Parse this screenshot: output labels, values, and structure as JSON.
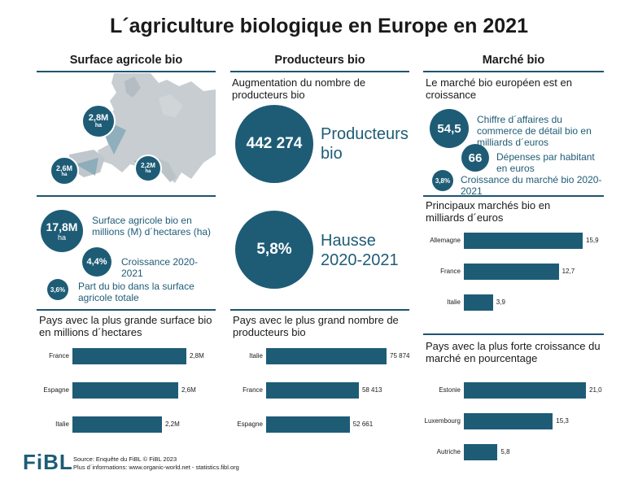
{
  "title": "L´agriculture biologique en Europe en 2021",
  "columns": {
    "surface": "Surface agricole bio",
    "producers": "Producteurs bio",
    "market": "Marché bio"
  },
  "map": {
    "bubbles": [
      {
        "value": "2,8M",
        "unit": "ha"
      },
      {
        "value": "2,6M",
        "unit": "ha"
      },
      {
        "value": "2,2M",
        "unit": "ha"
      }
    ]
  },
  "surface_stats": {
    "area": {
      "value": "17,8M",
      "unit": "ha",
      "label": "Surface agricole bio en millions (M) d´hectares (ha)"
    },
    "growth": {
      "value": "4,4%",
      "label": "Croissance 2020-2021"
    },
    "share": {
      "value": "3,6%",
      "label": "Part du bio dans la surface agricole totale"
    }
  },
  "producers_stats": {
    "heading": "Augmentation du nombre de producteurs bio",
    "count": {
      "value": "442 274",
      "label": "Producteurs bio"
    },
    "increase": {
      "value": "5,8%",
      "label": "Hausse 2020-2021"
    }
  },
  "market_stats": {
    "heading": "Le marché bio européen est en croissance",
    "turnover": {
      "value": "54,5",
      "label": "Chiffre d´affaires du commerce de détail bio en milliards d´euros"
    },
    "per_capita": {
      "value": "66",
      "label": "Dépenses par habitant en euros"
    },
    "growth": {
      "value": "3,8%",
      "label": "Croissance du marché bio 2020-2021"
    }
  },
  "chart_data": [
    {
      "type": "bar",
      "orientation": "horizontal",
      "title": "Pays avec la plus grande surface bio en millions d´hectares",
      "categories": [
        "France",
        "Espagne",
        "Italie"
      ],
      "values": [
        2.8,
        2.6,
        2.2
      ],
      "value_labels": [
        "2,8M",
        "2,6M",
        "2,2M"
      ],
      "xlim": [
        0,
        2.8
      ]
    },
    {
      "type": "bar",
      "orientation": "horizontal",
      "title": "Pays avec le plus grand nombre de producteurs bio",
      "categories": [
        "Italie",
        "France",
        "Espagne"
      ],
      "values": [
        75874,
        58413,
        52661
      ],
      "value_labels": [
        "75 874",
        "58 413",
        "52 661"
      ],
      "xlim": [
        0,
        75874
      ]
    },
    {
      "type": "bar",
      "orientation": "horizontal",
      "title": "Principaux marchés bio en milliards d´euros",
      "categories": [
        "Allemagne",
        "France",
        "Italie"
      ],
      "values": [
        15.9,
        12.7,
        3.9
      ],
      "value_labels": [
        "15,9",
        "12,7",
        "3,9"
      ],
      "xlim": [
        0,
        15.9
      ]
    },
    {
      "type": "bar",
      "orientation": "horizontal",
      "title": "Pays avec la plus forte croissance du marché en pourcentage",
      "categories": [
        "Estonie",
        "Luxembourg",
        "Autriche"
      ],
      "values": [
        21.0,
        15.3,
        5.8
      ],
      "value_labels": [
        "21,0",
        "15,3",
        "5,8"
      ],
      "xlim": [
        0,
        21.0
      ]
    }
  ],
  "footer": {
    "logo": "FiBL",
    "source": "Source: Enquête du FiBL © FiBL 2023",
    "info": "Plus d´informations: www.organic-world.net - statistics.fibl.org"
  },
  "colors": {
    "accent": "#1e5c76",
    "text": "#1a1a1a"
  }
}
